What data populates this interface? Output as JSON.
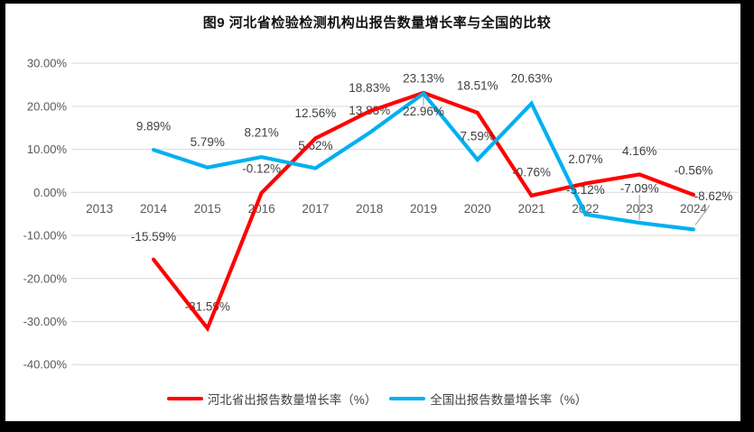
{
  "chart_data": {
    "type": "line",
    "title": "图9 河北省检验检测机构出报告数量增长率与全国的比较",
    "categories": [
      "2013",
      "2014",
      "2015",
      "2016",
      "2017",
      "2018",
      "2019",
      "2020",
      "2021",
      "2022",
      "2023",
      "2024"
    ],
    "series": [
      {
        "name": "河北省出报告数量增长率（%）",
        "color": "#ff0000",
        "values": [
          null,
          -15.59,
          -31.59,
          -0.12,
          12.56,
          18.83,
          23.13,
          18.51,
          -0.76,
          2.07,
          4.16,
          -0.56
        ],
        "labels": [
          "",
          "-15.59%",
          "-31.59%",
          "-0.12%",
          "12.56%",
          "18.83%",
          "23.13%",
          "18.51%",
          "-0.76%",
          "2.07%",
          "4.16%",
          "-0.56%"
        ]
      },
      {
        "name": "全国出报告数量增长率（%）",
        "color": "#00b0f0",
        "values": [
          null,
          9.89,
          5.79,
          8.21,
          5.62,
          13.83,
          22.96,
          7.59,
          20.63,
          -5.12,
          -7.09,
          -8.62
        ],
        "labels": [
          "",
          "9.89%",
          "5.79%",
          "8.21%",
          "5.62%",
          "13.83%",
          "22.96%",
          "7.59%",
          "20.63%",
          "-5.12%",
          "-7.09%",
          "-8.62%"
        ]
      }
    ],
    "yticks": [
      {
        "value": 30,
        "label": "30.00%"
      },
      {
        "value": 20,
        "label": "20.00%"
      },
      {
        "value": 10,
        "label": "10.00%"
      },
      {
        "value": 0,
        "label": "0.00%"
      },
      {
        "value": -10,
        "label": "-10.00%"
      },
      {
        "value": -20,
        "label": "-20.00%"
      },
      {
        "value": -30,
        "label": "-30.00%"
      },
      {
        "value": -40,
        "label": "-40.00%"
      }
    ],
    "ylim": [
      -40,
      30
    ],
    "grid": true,
    "legend_position": "bottom",
    "colors": {
      "gridline": "#d9d9d9",
      "axis_text": "#595959",
      "data_label_text": "#404040",
      "leader_line": "#a6a6a6",
      "title_text": "#111111",
      "frame": "#000000",
      "background": "#ffffff"
    }
  }
}
